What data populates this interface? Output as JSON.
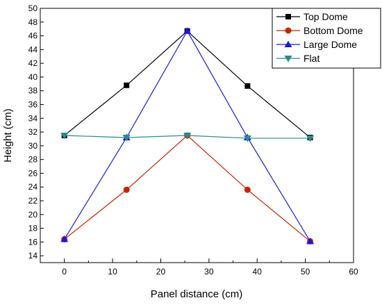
{
  "chart_data": {
    "type": "line",
    "xlabel": "Panel distance (cm)",
    "ylabel": "Height (cm)",
    "xlim": [
      -5,
      60
    ],
    "ylim": [
      13,
      50
    ],
    "xticks": [
      0,
      10,
      20,
      30,
      40,
      50,
      60
    ],
    "yticks": [
      14,
      16,
      18,
      20,
      22,
      24,
      26,
      28,
      30,
      32,
      34,
      36,
      38,
      40,
      42,
      44,
      46,
      48,
      50
    ],
    "grid": false,
    "legend_position": "top-right",
    "x": [
      0,
      12.9,
      25.5,
      38,
      51
    ],
    "series": [
      {
        "name": "Top Dome",
        "values": [
          31.5,
          38.8,
          46.7,
          38.7,
          31.2
        ],
        "color": "#000000",
        "marker": "square"
      },
      {
        "name": "Bottom Dome",
        "values": [
          16.4,
          23.6,
          31.5,
          23.6,
          16.1
        ],
        "color": "#cc2200",
        "marker": "circle"
      },
      {
        "name": "Large Dome",
        "values": [
          16.4,
          31.2,
          46.7,
          31.2,
          16.1
        ],
        "color": "#1a1adb",
        "marker": "triangle-up"
      },
      {
        "name": "Flat",
        "values": [
          31.5,
          31.2,
          31.5,
          31.1,
          31.1
        ],
        "color": "#2a8a8a",
        "marker": "triangle-down"
      }
    ]
  }
}
